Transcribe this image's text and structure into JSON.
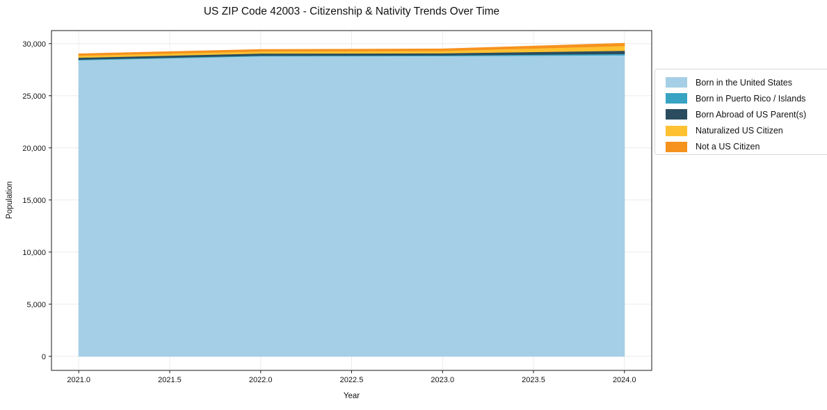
{
  "title": "US ZIP Code 42003 - Citizenship & Nativity Trends Over Time",
  "axes": {
    "xlabel": "Year",
    "ylabel": "Population"
  },
  "colors": {
    "background": "#ffffff",
    "spine": "#1a1a1a",
    "gridline": "#ececec",
    "tick_text": "#111111",
    "legend_border": "#d9d9d9"
  },
  "chart_data": {
    "type": "area",
    "stacked": true,
    "title": "US ZIP Code 42003 - Citizenship & Nativity Trends Over Time",
    "xlabel": "Year",
    "ylabel": "Population",
    "x": [
      2021,
      2022,
      2023,
      2024
    ],
    "series": [
      {
        "name": "Born in the United States",
        "color": "#a5cfe6",
        "values": [
          28420,
          28800,
          28820,
          28900
        ]
      },
      {
        "name": "Born in Puerto Rico / Islands",
        "color": "#38a3c2",
        "values": [
          65,
          65,
          70,
          130
        ]
      },
      {
        "name": "Born Abroad of US Parent(s)",
        "color": "#2a4c5e",
        "values": [
          180,
          200,
          200,
          300
        ]
      },
      {
        "name": "Naturalized US Citizen",
        "color": "#fdc132",
        "values": [
          200,
          205,
          225,
          465
        ]
      },
      {
        "name": "Not a US Citizen",
        "color": "#f6921e",
        "values": [
          155,
          160,
          175,
          235
        ]
      }
    ],
    "totals": [
      29020,
      29430,
      29490,
      30030
    ],
    "xlim": [
      2020.85,
      2024.15
    ],
    "ylim": [
      -1350,
      31250
    ],
    "xticks": [
      2021.0,
      2021.5,
      2022.0,
      2022.5,
      2023.0,
      2023.5,
      2024.0
    ],
    "xtick_labels": [
      "2021.0",
      "2021.5",
      "2022.0",
      "2022.5",
      "2023.0",
      "2023.5",
      "2024.0"
    ],
    "yticks": [
      0,
      5000,
      10000,
      15000,
      20000,
      25000,
      30000
    ],
    "ytick_labels": [
      "0",
      "5,000",
      "10,000",
      "15,000",
      "20,000",
      "25,000",
      "30,000"
    ],
    "grid": true,
    "legend_position": "right"
  }
}
